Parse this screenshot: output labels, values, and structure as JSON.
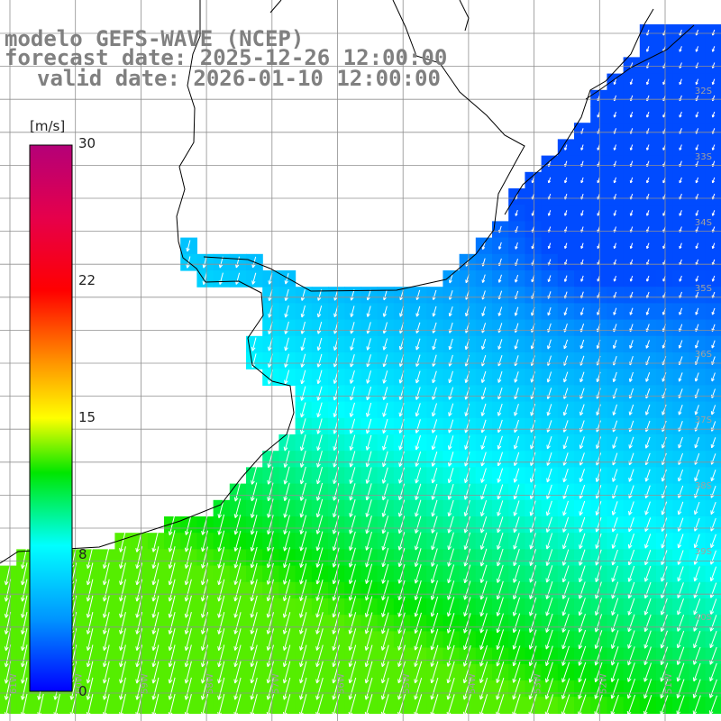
{
  "title": {
    "line1": "modelo GEFS-WAVE (NCEP)",
    "line2": "forecast date: 2025-12-26 12:00:00",
    "line3": "valid date: 2026-01-10 12:00:00"
  },
  "colorbar": {
    "unit": "[m/s]",
    "ticks": [
      "30",
      "22",
      "15",
      "8",
      "0"
    ],
    "tick_values": [
      30,
      22,
      15,
      8,
      0
    ],
    "range": [
      0,
      30
    ],
    "stops": [
      {
        "v": 0,
        "color": "#0000ff"
      },
      {
        "v": 4,
        "color": "#0096ff"
      },
      {
        "v": 8,
        "color": "#00ffff"
      },
      {
        "v": 12,
        "color": "#00e600"
      },
      {
        "v": 15,
        "color": "#ffff00"
      },
      {
        "v": 18,
        "color": "#ff9600"
      },
      {
        "v": 22,
        "color": "#ff0000"
      },
      {
        "v": 26,
        "color": "#e6004b"
      },
      {
        "v": 30,
        "color": "#b40078"
      }
    ]
  },
  "grid_labels": {
    "latitudes": [
      "32S",
      "33S",
      "34S",
      "35S",
      "36S",
      "37S",
      "38S",
      "39S",
      "40S"
    ],
    "longitudes": [
      "61W",
      "60W",
      "59W",
      "58W",
      "57W",
      "56W",
      "55W",
      "54W",
      "53W",
      "52W",
      "51W"
    ]
  },
  "colors": {
    "title_text": "#808080",
    "grid_line": "#909090",
    "coastline": "#000000",
    "arrows": "#ffffff",
    "land": "#ffffff"
  },
  "map_field": {
    "variable": "wind speed with direction arrows",
    "unit": "m/s",
    "wind_speed_min_shown": 2,
    "wind_speed_max_shown": 13,
    "northeast_region_speed": 2,
    "offshore_central_speed": 7,
    "southwest_coast_speed": 13,
    "prevailing_direction": "from north-northeast toward south-southwest"
  }
}
